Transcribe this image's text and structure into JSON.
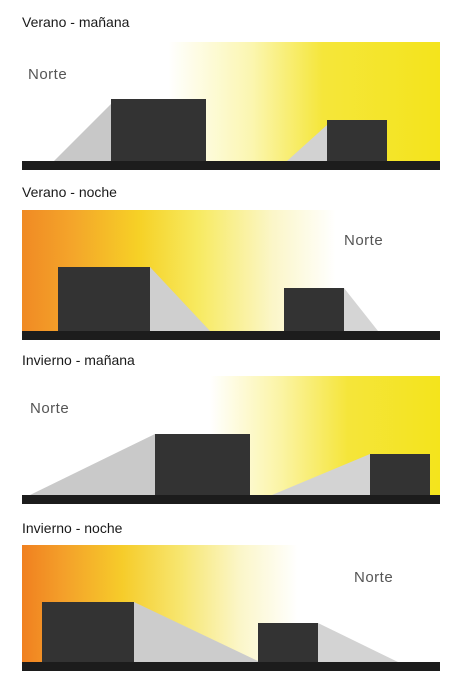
{
  "panels": [
    {
      "title": "Verano - mañana",
      "label": "Norte"
    },
    {
      "title": "Verano -  noche",
      "label": "Norte"
    },
    {
      "title": "Invierno - mañana",
      "label": "Norte"
    },
    {
      "title": "Invierno - noche",
      "label": "Norte"
    }
  ],
  "colors": {
    "morning_sun": "#f4e41c",
    "night_sun": "#f08a24",
    "building": "#333333",
    "ground": "#1c1c1c",
    "shadow": "#c8c8c8"
  }
}
